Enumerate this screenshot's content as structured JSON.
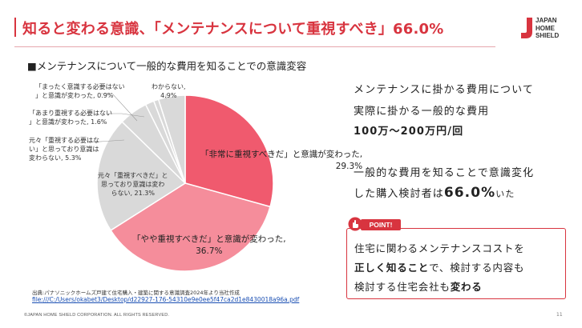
{
  "header": {
    "title": "知ると変わる意識、「メンテナンスについて重視すべき」66.0%",
    "logo_text": [
      "JAPAN",
      "HOME",
      "SHIELD"
    ]
  },
  "subtitle": "■メンテナンスについて一般的な費用を知ることでの意識変容",
  "chart_data": {
    "type": "pie",
    "title": "",
    "categories": [
      "「非常に重視すべきだ」と意識が変わった",
      "「やや重視すべきだ」と意識が変わった",
      "元々「重視すべきだ」と思っており意識は変わらない",
      "元々「重視する必要はない」と思っており意識は変わらない",
      "「あまり重視する必要はない」と意識が変わった",
      "「まったく意識する必要はない」と意識が変わった",
      "わからない"
    ],
    "values": [
      29.3,
      36.7,
      21.3,
      5.3,
      1.6,
      0.9,
      4.9
    ],
    "colors": [
      "#f05a6e",
      "#f58d9b",
      "#d9d9d9",
      "#d9d9d9",
      "#d9d9d9",
      "#d9d9d9",
      "#d9d9d9"
    ],
    "labels": {
      "s0": [
        "「非常に重視すべきだ」と意識が変わった,",
        "29.3%"
      ],
      "s1": [
        "「やや重視すべきだ」と意識が変わった,",
        "36.7%"
      ],
      "s2": [
        "元々「重視すべきだ」と",
        "思っており意識は変わ",
        "らない, 21.3%"
      ],
      "s3": [
        "元々「重視する必要はな",
        "い」と思っており意識は",
        "変わらない, 5.3%"
      ],
      "s4": [
        "「あまり重視する必要はない",
        "」と意識が変わった, 1.6%"
      ],
      "s5": [
        "「まったく意識する必要はない",
        "」と意識が変わった, 0.9%"
      ],
      "s6": [
        "わからない,",
        "4.9%"
      ]
    }
  },
  "right_panel": {
    "line1": "メンテナンスに掛かる費用について",
    "line2": "実際に掛かる一般的な費用",
    "line3": "100万～200万円/回",
    "line4": "一般的な費用を知ることで意識変化",
    "line5_pre": "した購入検討者は",
    "line5_pct": "66.0%",
    "line5_post": "いた"
  },
  "point": {
    "badge": "POINT!",
    "line1": "住宅に関わるメンテナンスコストを",
    "line2_bold": "正しく知ること",
    "line2_rest": "で、検討する内容も",
    "line3_pre": "検討する住宅会社も",
    "line3_bold": "変わる"
  },
  "source": {
    "text": "出典:パナソニックホームズ戸建て住宅購入・建築に関する意識調査2024年より当社作成",
    "link": "file:///C:/Users/okabet3/Desktop/d22927-176-54310e9e0ee5f47ca2d1e8430018a96a.pdf"
  },
  "footer": {
    "copyright": "©JAPAN HOME SHIELD CORPORATION.  ALL RIGHTS RESERVED.",
    "page": "11"
  }
}
